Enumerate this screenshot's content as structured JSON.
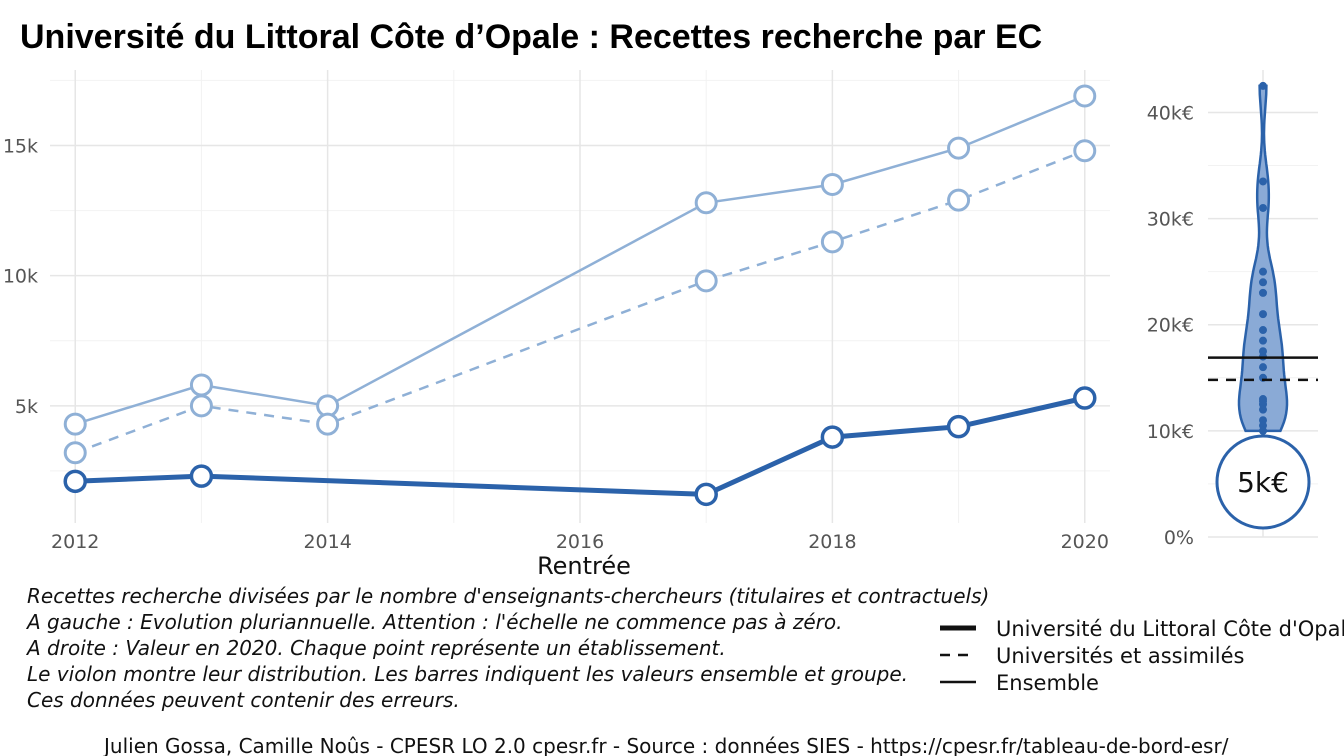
{
  "chart_data": {
    "title": "Université du Littoral Côte d’Opale  :  Recettes recherche par EC",
    "left_panel": {
      "type": "line",
      "xlabel": "Rentrée",
      "ylabel": "",
      "x_ticks": [
        "2012",
        "2014",
        "2016",
        "2018",
        "2020"
      ],
      "y_ticks": [
        "5k",
        "10k",
        "15k"
      ],
      "xlim": [
        2011.8,
        2020.2
      ],
      "ylim": [
        500,
        17900
      ],
      "grid": true,
      "series": [
        {
          "name": "Université du Littoral Côte d'Opale",
          "style": "thick-solid",
          "color": "#2b62aa",
          "x": [
            2012,
            2013,
            2017,
            2018,
            2019,
            2020
          ],
          "values": [
            2100,
            2300,
            1600,
            3800,
            4200,
            5300
          ]
        },
        {
          "name": "Universités et assimilés",
          "style": "dashed",
          "color": "#8fb0d6",
          "x": [
            2012,
            2013,
            2014,
            2017,
            2018,
            2019,
            2020
          ],
          "values": [
            3200,
            5000,
            4300,
            9800,
            11300,
            12900,
            14800
          ]
        },
        {
          "name": "Ensemble",
          "style": "thin-solid",
          "color": "#8fb0d6",
          "x": [
            2012,
            2013,
            2014,
            2017,
            2018,
            2019,
            2020
          ],
          "values": [
            4300,
            5800,
            5000,
            12800,
            13500,
            14900,
            16900
          ]
        }
      ]
    },
    "right_panel": {
      "type": "violin",
      "y_ticks": [
        "0%",
        "10k€",
        "20k€",
        "30k€",
        "40k€"
      ],
      "ylim": [
        0,
        44000
      ],
      "points": [
        42500,
        33500,
        31000,
        25000,
        24000,
        23000,
        21000,
        19500,
        18500,
        17500,
        17000,
        16000,
        15000,
        13000,
        12500,
        12800,
        12000,
        11000,
        10500,
        10000
      ],
      "lines": {
        "ensemble": 16900,
        "groupe": 14800
      },
      "highlight_label": "5k€",
      "highlight_value": 5300
    },
    "notes": [
      "Recettes recherche divisées par le nombre d'enseignants-chercheurs (titulaires et contractuels)",
      "A gauche : Evolution pluriannuelle. Attention : l'échelle ne commence pas à zéro.",
      "A droite : Valeur en 2020. Chaque point représente un établissement.",
      "Le violon montre leur distribution. Les barres indiquent les valeurs ensemble et groupe.",
      "Ces données peuvent contenir des erreurs."
    ],
    "legend": [
      {
        "label": "Université du Littoral Côte d'Opale",
        "style": "thick-solid"
      },
      {
        "label": "Universités et assimilés",
        "style": "dashed"
      },
      {
        "label": "Ensemble",
        "style": "thin-solid"
      }
    ],
    "caption": "Julien Gossa, Camille Noûs - CPESR LO 2.0 cpesr.fr - Source : données SIES - https://cpesr.fr/tableau-de-bord-esr/"
  }
}
